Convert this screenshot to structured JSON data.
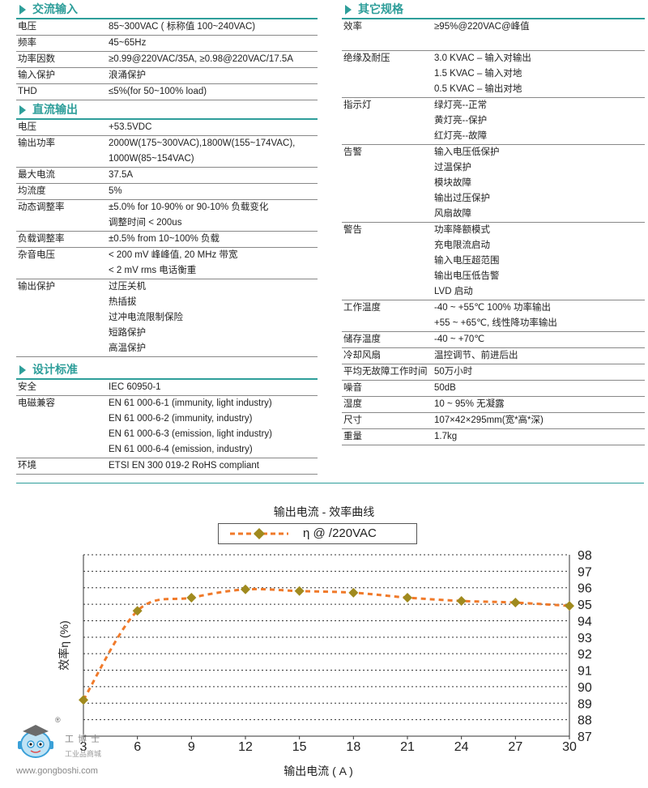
{
  "sections": {
    "ac_input": {
      "title": "交流输入",
      "rows": [
        {
          "k": "电压",
          "v": [
            "85~300VAC ( 标称值 100~240VAC)"
          ]
        },
        {
          "k": "频率",
          "v": [
            "45~65Hz"
          ]
        },
        {
          "k": "功率因数",
          "v": [
            "≥0.99@220VAC/35A, ≥0.98@220VAC/17.5A"
          ]
        },
        {
          "k": "输入保护",
          "v": [
            "浪涌保护"
          ]
        },
        {
          "k": "THD",
          "v": [
            "≤5%(for 50~100% load)"
          ]
        }
      ]
    },
    "dc_output": {
      "title": "直流输出",
      "rows": [
        {
          "k": "电压",
          "v": [
            "+53.5VDC"
          ]
        },
        {
          "k": "输出功率",
          "v": [
            "2000W(175~300VAC),1800W(155~174VAC),",
            "1000W(85~154VAC)"
          ]
        },
        {
          "k": "最大电流",
          "v": [
            "37.5A"
          ]
        },
        {
          "k": "均流度",
          "v": [
            "5%"
          ]
        },
        {
          "k": "动态调整率",
          "v": [
            "±5.0% for 10-90% or 90-10% 负载变化",
            "调整时间 < 200us"
          ]
        },
        {
          "k": "负载调整率",
          "v": [
            "±0.5% from 10~100% 负载"
          ]
        },
        {
          "k": "杂音电压",
          "v": [
            "< 200 mV 峰峰值, 20 MHz 带宽",
            "< 2 mV rms 电话衡重"
          ]
        },
        {
          "k": "输出保护",
          "v": [
            "过压关机",
            "热插拔",
            "过冲电流限制保险",
            "短路保护",
            "高温保护"
          ]
        }
      ]
    },
    "design_std": {
      "title": "设计标准",
      "rows": [
        {
          "k": "安全",
          "v": [
            "IEC 60950-1"
          ]
        },
        {
          "k": "电磁兼容",
          "v": [
            "EN 61 000-6-1 (immunity, light industry)",
            "EN 61 000-6-2 (immunity, industry)",
            "EN 61 000-6-3 (emission, light industry)",
            "EN 61 000-6-4 (emission, industry)"
          ]
        },
        {
          "k": "环境",
          "v": [
            "ETSI EN 300 019-2 RoHS compliant"
          ]
        }
      ]
    },
    "other_spec": {
      "title": "其它规格",
      "rows": [
        {
          "k": "效率",
          "v": [
            "≥95%@220VAC@峰值",
            ""
          ]
        },
        {
          "k": "绝缘及耐压",
          "v": [
            "3.0 KVAC – 输入对输出",
            "1.5 KVAC – 输入对地",
            "0.5 KVAC – 输出对地"
          ]
        },
        {
          "k": "指示灯",
          "v": [
            "绿灯亮--正常",
            "黄灯亮--保护",
            "红灯亮--故障"
          ]
        },
        {
          "k": "告警",
          "v": [
            "输入电压低保护",
            "过温保护",
            "模块故障",
            "输出过压保护",
            "风扇故障"
          ]
        },
        {
          "k": "警告",
          "v": [
            "功率降额模式",
            "充电限流启动",
            "输入电压超范围",
            "输出电压低告警",
            "LVD 启动"
          ]
        },
        {
          "k": "工作温度",
          "v": [
            "-40 ~ +55℃ 100% 功率输出",
            "+55 ~ +65℃, 线性降功率输出"
          ]
        },
        {
          "k": "储存温度",
          "v": [
            "-40 ~ +70℃"
          ]
        },
        {
          "k": "冷却风扇",
          "v": [
            "温控调节、前进后出"
          ]
        },
        {
          "k": "平均无故障工作时间",
          "v": [
            "50万小时"
          ]
        },
        {
          "k": "噪音",
          "v": [
            "50dB"
          ]
        },
        {
          "k": "湿度",
          "v": [
            "10 ~ 95% 无凝露"
          ]
        },
        {
          "k": "尺寸",
          "v": [
            "107×42×295mm(宽*高*深)"
          ]
        },
        {
          "k": "重量",
          "v": [
            "1.7kg"
          ]
        }
      ]
    }
  },
  "chart_data": {
    "type": "line",
    "title": "输出电流 - 效率曲线",
    "xlabel": "输出电流 ( A )",
    "ylabel": "效率η (%)",
    "x": [
      3,
      6,
      9,
      12,
      15,
      18,
      21,
      24,
      27,
      30
    ],
    "xticks": [
      3,
      6,
      9,
      12,
      15,
      18,
      21,
      24,
      27,
      30
    ],
    "yticks": [
      87,
      88,
      89,
      90,
      91,
      92,
      93,
      94,
      95,
      96,
      97,
      98
    ],
    "xlim": [
      3,
      30
    ],
    "ylim": [
      87,
      98
    ],
    "y_axis_side": "right",
    "grid": "horizontal-dotted",
    "legend_position": "top",
    "series": [
      {
        "name": "η @ /220VAC",
        "values": [
          89.2,
          94.6,
          95.4,
          95.9,
          95.8,
          95.7,
          95.4,
          95.2,
          95.1,
          94.9
        ],
        "line_color": "#f07a2a",
        "marker_color": "#a08a1e",
        "line_style": "dashed",
        "marker": "diamond"
      }
    ]
  },
  "watermark": {
    "brand_cn": "工 博 士",
    "tagline": "工业品商城",
    "url": "www.gongboshi.com",
    "registered": "®"
  }
}
